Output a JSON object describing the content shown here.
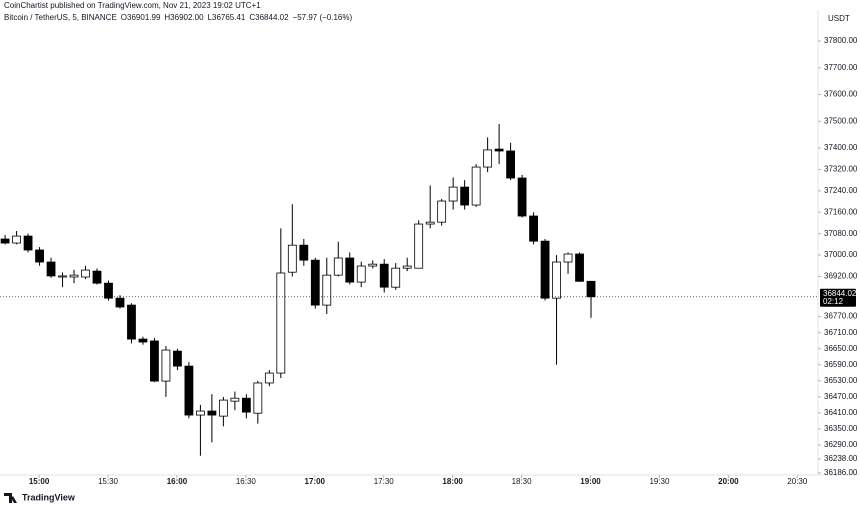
{
  "header": {
    "publisher": "CoinChartist published on TradingView.com, Nov 21, 2023 19:02 UTC+1",
    "symbol": "Bitcoin / TetherUS, 5, BINANCE",
    "ohlc": [
      "O36901.99",
      "H36902.00",
      "L36765.41",
      "C36844.02",
      "−57.97 (−0.16%)"
    ]
  },
  "footer": {
    "brand": "TradingView"
  },
  "chart_data": {
    "type": "candlestick",
    "y_unit": "USDT",
    "up_color": "#ffffff",
    "down_color": "#000000",
    "outline_color": "#000000",
    "x": [
      "14:45",
      "14:50",
      "14:55",
      "15:00",
      "15:05",
      "15:10",
      "15:15",
      "15:20",
      "15:25",
      "15:30",
      "15:35",
      "15:40",
      "15:45",
      "15:50",
      "15:55",
      "16:00",
      "16:05",
      "16:10",
      "16:15",
      "16:20",
      "16:25",
      "16:30",
      "16:35",
      "16:40",
      "16:45",
      "16:50",
      "16:55",
      "17:00",
      "17:05",
      "17:10",
      "17:15",
      "17:20",
      "17:25",
      "17:30",
      "17:35",
      "17:40",
      "17:45",
      "17:50",
      "17:55",
      "18:00",
      "18:05",
      "18:10",
      "18:15",
      "18:20",
      "18:25",
      "18:30",
      "18:35",
      "18:40",
      "18:45",
      "18:50",
      "18:55",
      "19:00"
    ],
    "open": [
      37060,
      37045,
      37071,
      37019,
      36974,
      36918,
      36918,
      36918,
      36940,
      36895,
      36839,
      36813,
      36686,
      36679,
      36529,
      36641,
      36585,
      36402,
      36417,
      36398,
      36454,
      36465,
      36409,
      36522,
      36559,
      36936,
      37037,
      36981,
      36813,
      36925,
      36989,
      36899,
      36959,
      36966,
      36880,
      36951,
      36951,
      37116,
      37123,
      37202,
      37254,
      37187,
      37329,
      37396,
      37389,
      37288,
      37146,
      37052,
      36839,
      36974,
      37004,
      36901.99
    ],
    "high": [
      37075,
      37090,
      37080,
      37030,
      36990,
      36935,
      36945,
      36960,
      36950,
      36905,
      36850,
      36820,
      36695,
      36690,
      36660,
      36650,
      36600,
      36440,
      36480,
      36470,
      36490,
      36480,
      36530,
      36570,
      37100,
      37190,
      37060,
      36990,
      36990,
      37050,
      37010,
      36975,
      36980,
      36985,
      36970,
      36990,
      37130,
      37260,
      37210,
      37290,
      37280,
      37340,
      37440,
      37490,
      37420,
      37300,
      37160,
      37060,
      37000,
      37010,
      37010,
      36902.0
    ],
    "low": [
      37040,
      37040,
      37010,
      36960,
      36915,
      36880,
      36895,
      36910,
      36890,
      36830,
      36800,
      36670,
      36665,
      36525,
      36470,
      36570,
      36390,
      36250,
      36300,
      36360,
      36420,
      36390,
      36370,
      36510,
      36540,
      36920,
      36960,
      36800,
      36780,
      36920,
      36890,
      36880,
      36950,
      36860,
      36870,
      36940,
      36950,
      37100,
      37110,
      37170,
      37170,
      37180,
      37310,
      37340,
      37280,
      37140,
      37040,
      36830,
      36590,
      36930,
      36900,
      36765.41
    ],
    "close": [
      37045,
      37071,
      37019,
      36974,
      36922,
      36922,
      36925,
      36944,
      36895,
      36839,
      36806,
      36686,
      36675,
      36529,
      36645,
      36585,
      36402,
      36417,
      36402,
      36458,
      36465,
      36413,
      36522,
      36559,
      36933,
      37037,
      36981,
      36813,
      36925,
      36989,
      36899,
      36959,
      36966,
      36880,
      36951,
      36959,
      37116,
      37123,
      37202,
      37254,
      37187,
      37329,
      37393,
      37389,
      37288,
      37146,
      37052,
      36839,
      36974,
      37004,
      36901.99,
      36844.02
    ],
    "xlim": [
      "14:43",
      "20:39"
    ],
    "xticks": [
      "15:00",
      "15:30",
      "16:00",
      "16:30",
      "17:00",
      "17:30",
      "18:00",
      "18:30",
      "19:00",
      "19:30",
      "20:00",
      "20:30"
    ],
    "ylim": [
      36178,
      37916
    ],
    "yticks": [
      {
        "value": 37800,
        "label": "37800.00"
      },
      {
        "value": 37700,
        "label": "37700.00"
      },
      {
        "value": 37600,
        "label": "37600.00"
      },
      {
        "value": 37500,
        "label": "37500.00"
      },
      {
        "value": 37400,
        "label": "37400.00"
      },
      {
        "value": 37320,
        "label": "37320.00"
      },
      {
        "value": 37240,
        "label": "37240.00"
      },
      {
        "value": 37160,
        "label": "37160.00"
      },
      {
        "value": 37080,
        "label": "37080.00"
      },
      {
        "value": 37000,
        "label": "37000.00"
      },
      {
        "value": 36920,
        "label": "36920.00"
      },
      {
        "value": 36770,
        "label": "36770.00"
      },
      {
        "value": 36710,
        "label": "36710.00"
      },
      {
        "value": 36650,
        "label": "36650.00"
      },
      {
        "value": 36590,
        "label": "36590.00"
      },
      {
        "value": 36530,
        "label": "36530.00"
      },
      {
        "value": 36470,
        "label": "36470.00"
      },
      {
        "value": 36410,
        "label": "36410.00"
      },
      {
        "value": 36350,
        "label": "36350.00"
      },
      {
        "value": 36290,
        "label": "36290.00"
      },
      {
        "value": 36238,
        "label": "36238.00"
      },
      {
        "value": 36186,
        "label": "36186.00"
      }
    ],
    "last_price": {
      "value": 36844.02,
      "countdown": "02:12",
      "color": "#000000"
    }
  }
}
